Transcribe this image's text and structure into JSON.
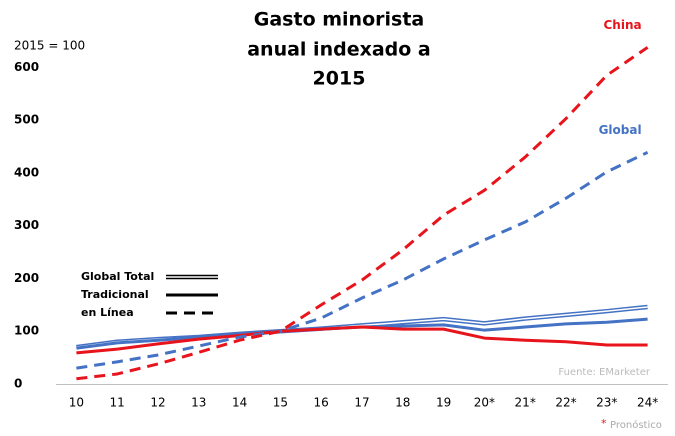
{
  "chart_data": {
    "type": "line",
    "title": [
      "Gasto minorista",
      "anual indexado a",
      "2015"
    ],
    "unit_label": "2015 = 100",
    "source": "Fuente: EMarketer",
    "footnote_mark": "*",
    "footnote": "Pronóstico",
    "categories": [
      "10",
      "11",
      "12",
      "13",
      "14",
      "15",
      "16",
      "17",
      "18",
      "19",
      "20*",
      "21*",
      "22*",
      "23*",
      "24*"
    ],
    "ylim": [
      0,
      650
    ],
    "yticks": [
      0,
      100,
      200,
      300,
      400,
      500,
      600
    ],
    "grid": false,
    "legend": [
      {
        "label": "Global Total",
        "style": "double"
      },
      {
        "label": "Tradicional",
        "style": "solid"
      },
      {
        "label": "en Línea",
        "style": "dashed"
      }
    ],
    "series": [
      {
        "name": "China",
        "color": "#e8141c",
        "style": "dashed",
        "values": [
          10,
          19,
          38,
          60,
          83,
          100,
          150,
          197,
          254,
          320,
          367,
          430,
          503,
          585,
          638
        ]
      },
      {
        "name": "Global",
        "color": "#4472c4",
        "style": "dashed",
        "values": [
          30,
          42,
          55,
          72,
          89,
          100,
          125,
          163,
          197,
          237,
          273,
          307,
          352,
          402,
          439
        ]
      },
      {
        "color": "#e8141c",
        "style": "solid",
        "values": [
          59,
          66,
          76,
          85,
          92,
          100,
          104,
          108,
          104,
          104,
          87,
          83,
          80,
          74,
          74
        ]
      },
      {
        "color": "#4472c4",
        "style": "solid",
        "values": [
          68,
          78,
          83,
          89,
          95,
          100,
          104,
          108,
          110,
          112,
          102,
          108,
          114,
          117,
          123
        ]
      },
      {
        "color": "#4472c4",
        "style": "double",
        "values": [
          70,
          80,
          85,
          89,
          95,
          100,
          105,
          111,
          117,
          123,
          115,
          124,
          131,
          138,
          146
        ]
      }
    ]
  }
}
